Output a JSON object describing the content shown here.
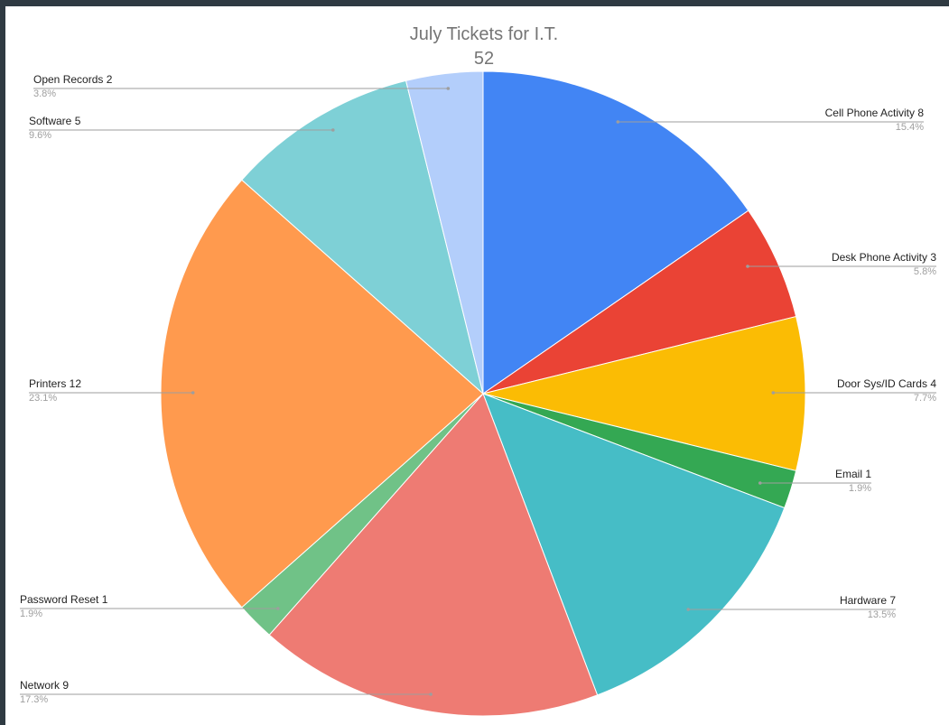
{
  "chart_data": {
    "type": "pie",
    "title": "July Tickets for I.T.",
    "subtitle": "52",
    "total": 52,
    "start_angle_deg": 0,
    "direction": "clockwise",
    "slices": [
      {
        "label": "Cell Phone Activity",
        "value": 8,
        "percent": "15.4%",
        "color": "#4285f4"
      },
      {
        "label": "Desk Phone Activity",
        "value": 3,
        "percent": "5.8%",
        "color": "#ea4335"
      },
      {
        "label": "Door Sys/ID Cards",
        "value": 4,
        "percent": "7.7%",
        "color": "#fbbc04"
      },
      {
        "label": "Email",
        "value": 1,
        "percent": "1.9%",
        "color": "#34a853"
      },
      {
        "label": "Hardware",
        "value": 7,
        "percent": "13.5%",
        "color": "#46bdc6"
      },
      {
        "label": "Network",
        "value": 9,
        "percent": "17.3%",
        "color": "#ee7b73"
      },
      {
        "label": "Password Reset",
        "value": 1,
        "percent": "1.9%",
        "color": "#70c287"
      },
      {
        "label": "Printers",
        "value": 12,
        "percent": "23.1%",
        "color": "#ff9a4e"
      },
      {
        "label": "Software",
        "value": 5,
        "percent": "9.6%",
        "color": "#7ed0d6"
      },
      {
        "label": "Open Records",
        "value": 2,
        "percent": "3.8%",
        "color": "#b3cefb"
      }
    ]
  }
}
